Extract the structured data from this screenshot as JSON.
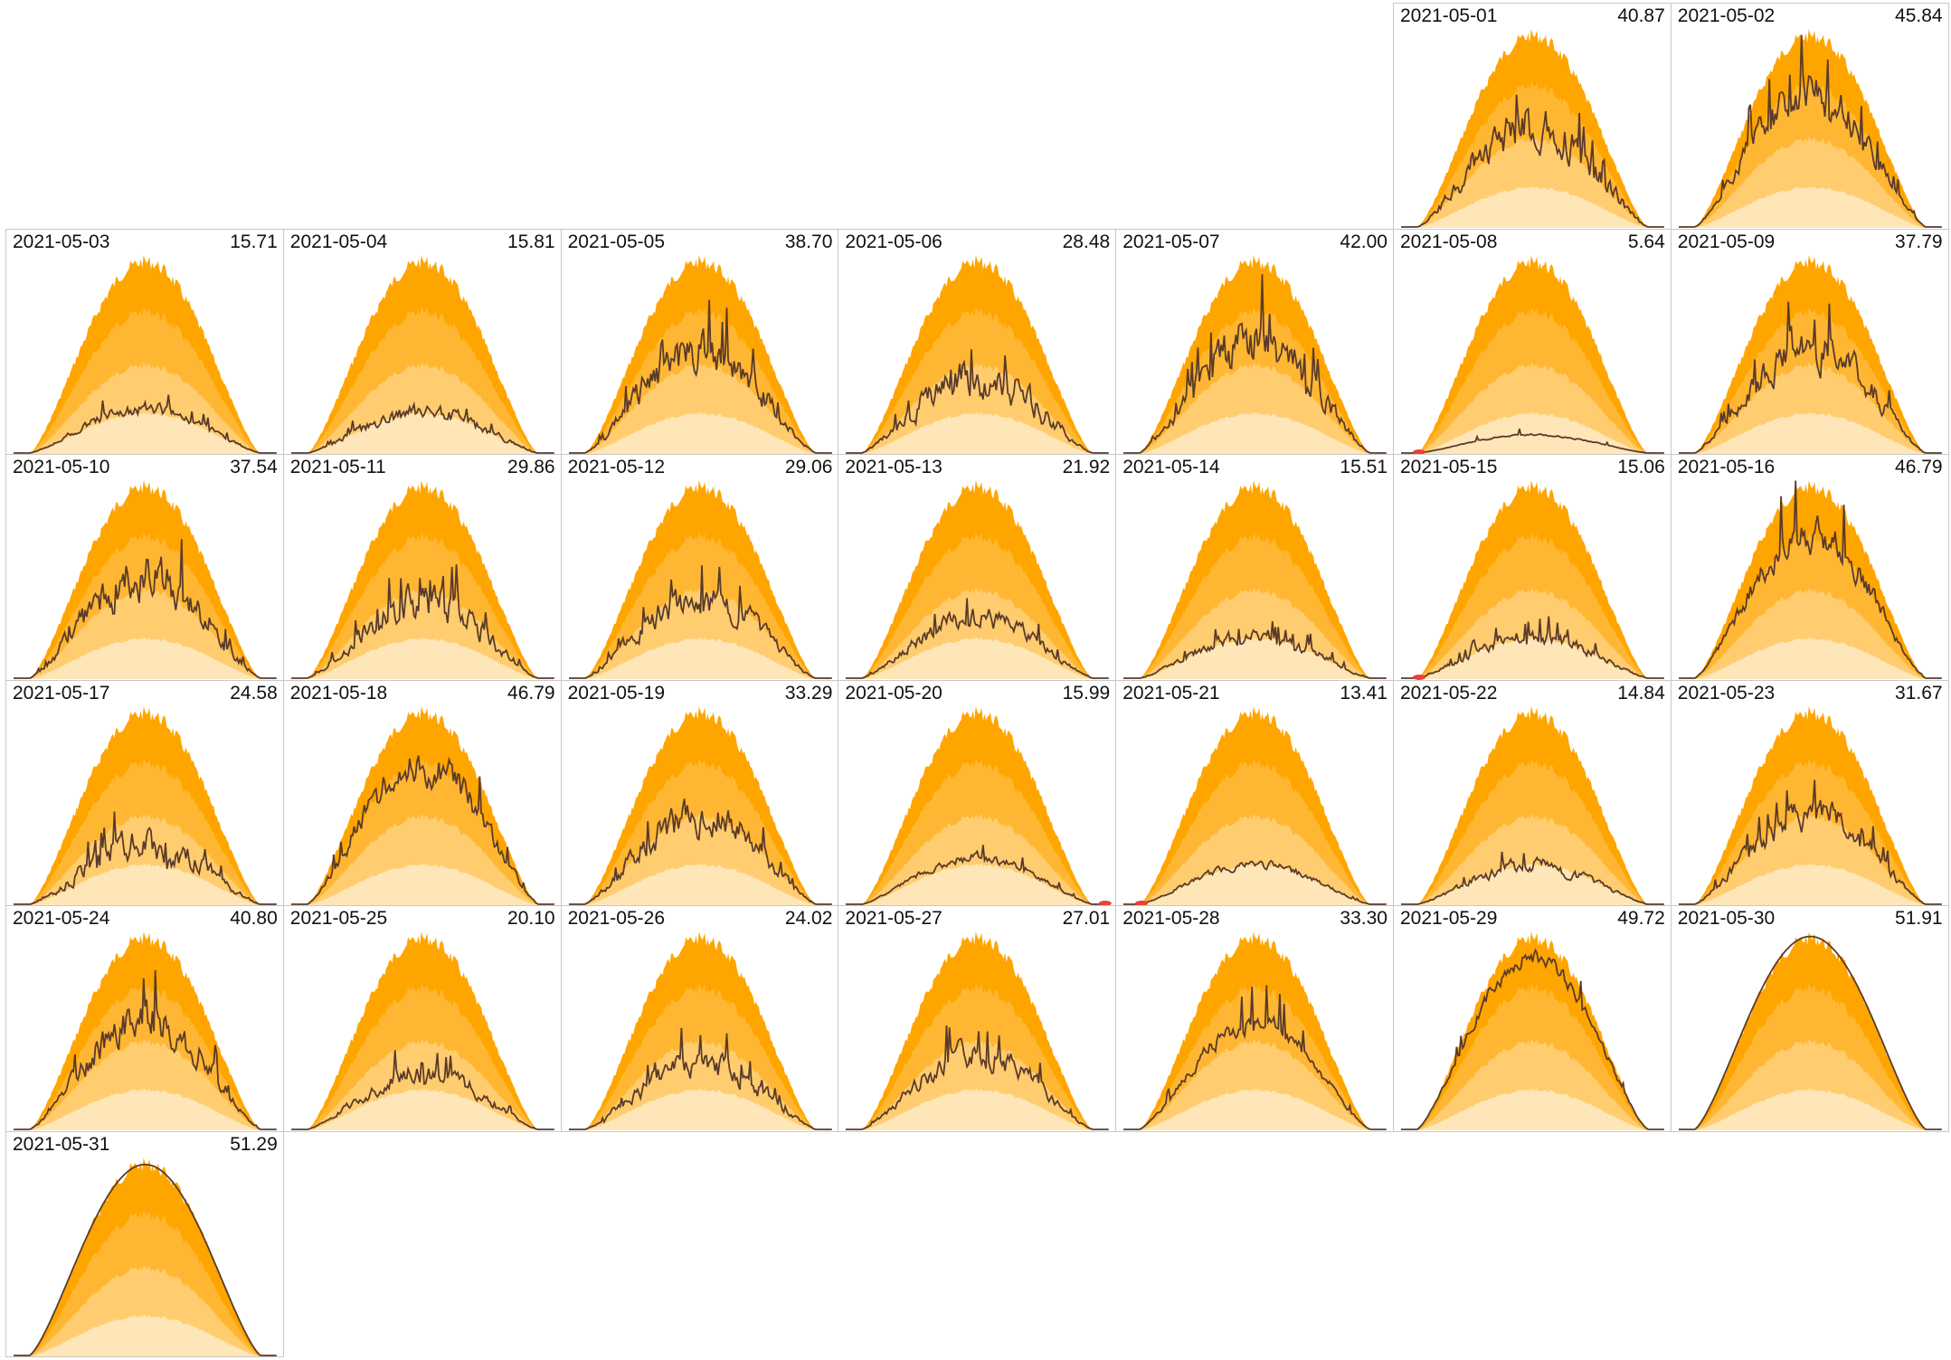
{
  "chart_data": {
    "type": "area",
    "layout": "calendar-small-multiples",
    "columns": 7,
    "first_weekday_offset": 5,
    "colors": {
      "band_outer": "#ffa500",
      "band_upper": "#ffb733",
      "band_middle": "#ffcd70",
      "band_inner": "#ffe6b8",
      "observed_line": "#5a3a2a",
      "low_marker": "#e8403c",
      "frame": "#c8c8c8"
    },
    "days": [
      {
        "date": "2021-05-01",
        "total": "40.87",
        "shape": 0.72,
        "variability": 0.75,
        "low": false
      },
      {
        "date": "2021-05-02",
        "total": "45.84",
        "shape": 0.85,
        "variability": 0.55,
        "low": false
      },
      {
        "date": "2021-05-03",
        "total": "15.71",
        "shape": 0.28,
        "variability": 0.5,
        "low": false
      },
      {
        "date": "2021-05-04",
        "total": "15.81",
        "shape": 0.28,
        "variability": 0.65,
        "low": false
      },
      {
        "date": "2021-05-05",
        "total": "38.70",
        "shape": 0.72,
        "variability": 0.7,
        "low": false
      },
      {
        "date": "2021-05-06",
        "total": "28.48",
        "shape": 0.55,
        "variability": 0.8,
        "low": false
      },
      {
        "date": "2021-05-07",
        "total": "42.00",
        "shape": 0.78,
        "variability": 0.7,
        "low": false
      },
      {
        "date": "2021-05-08",
        "total": "5.64",
        "shape": 0.1,
        "variability": 0.2,
        "low": true
      },
      {
        "date": "2021-05-09",
        "total": "37.79",
        "shape": 0.72,
        "variability": 0.65,
        "low": false
      },
      {
        "date": "2021-05-10",
        "total": "37.54",
        "shape": 0.72,
        "variability": 0.75,
        "low": false
      },
      {
        "date": "2021-05-11",
        "total": "29.86",
        "shape": 0.55,
        "variability": 0.75,
        "low": false
      },
      {
        "date": "2021-05-12",
        "total": "29.06",
        "shape": 0.55,
        "variability": 0.7,
        "low": false
      },
      {
        "date": "2021-05-13",
        "total": "21.92",
        "shape": 0.4,
        "variability": 0.6,
        "low": false
      },
      {
        "date": "2021-05-14",
        "total": "15.51",
        "shape": 0.28,
        "variability": 0.6,
        "low": false
      },
      {
        "date": "2021-05-15",
        "total": "15.06",
        "shape": 0.28,
        "variability": 0.6,
        "low": true
      },
      {
        "date": "2021-05-16",
        "total": "46.79",
        "shape": 0.88,
        "variability": 0.45,
        "low": false
      },
      {
        "date": "2021-05-17",
        "total": "24.58",
        "shape": 0.45,
        "variability": 0.85,
        "low": false
      },
      {
        "date": "2021-05-18",
        "total": "46.79",
        "shape": 0.88,
        "variability": 0.5,
        "low": false
      },
      {
        "date": "2021-05-19",
        "total": "33.29",
        "shape": 0.62,
        "variability": 0.7,
        "low": false
      },
      {
        "date": "2021-05-20",
        "total": "15.99",
        "shape": 0.28,
        "variability": 0.4,
        "low": true
      },
      {
        "date": "2021-05-21",
        "total": "13.41",
        "shape": 0.24,
        "variability": 0.4,
        "low": true
      },
      {
        "date": "2021-05-22",
        "total": "14.84",
        "shape": 0.26,
        "variability": 0.6,
        "low": false
      },
      {
        "date": "2021-05-23",
        "total": "31.67",
        "shape": 0.6,
        "variability": 0.6,
        "low": false
      },
      {
        "date": "2021-05-24",
        "total": "40.80",
        "shape": 0.76,
        "variability": 0.65,
        "low": false
      },
      {
        "date": "2021-05-25",
        "total": "20.10",
        "shape": 0.37,
        "variability": 0.6,
        "low": false
      },
      {
        "date": "2021-05-26",
        "total": "24.02",
        "shape": 0.45,
        "variability": 0.7,
        "low": false
      },
      {
        "date": "2021-05-27",
        "total": "27.01",
        "shape": 0.5,
        "variability": 0.6,
        "low": false
      },
      {
        "date": "2021-05-28",
        "total": "33.30",
        "shape": 0.62,
        "variability": 0.35,
        "low": false
      },
      {
        "date": "2021-05-29",
        "total": "49.72",
        "shape": 0.94,
        "variability": 0.2,
        "low": false
      },
      {
        "date": "2021-05-30",
        "total": "51.91",
        "shape": 0.97,
        "variability": 0.02,
        "low": false
      },
      {
        "date": "2021-05-31",
        "total": "51.29",
        "shape": 0.96,
        "variability": 0.05,
        "low": false
      }
    ]
  }
}
